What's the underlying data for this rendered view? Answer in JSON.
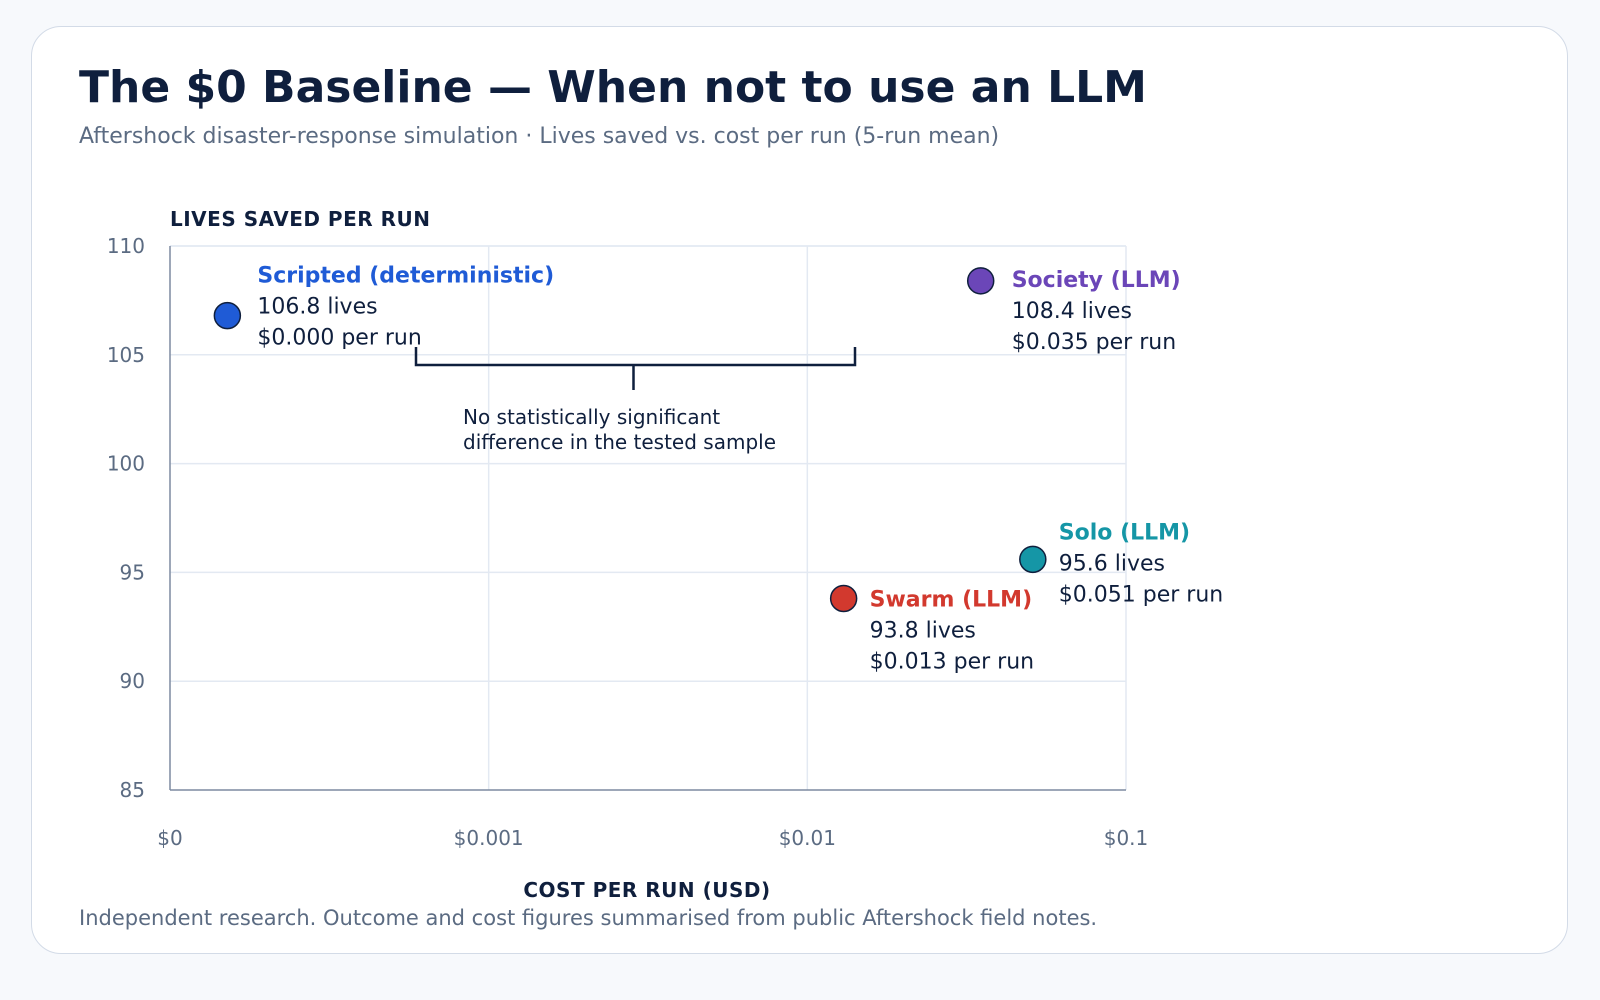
{
  "header": {
    "title": "The $0 Baseline — When not to use an LLM",
    "subtitle": "Aftershock disaster-response simulation · Lives saved vs. cost per run (5-run mean)"
  },
  "footer": {
    "note": "Independent research. Outcome and cost figures summarised from public Aftershock field notes."
  },
  "chart_data": {
    "type": "scatter",
    "xlabel": "COST PER RUN (USD)",
    "ylabel": "LIVES SAVED PER RUN",
    "x_scale": "log-with-zero",
    "x_ticks": [
      "$0",
      "$0.001",
      "$0.01",
      "$0.1"
    ],
    "y_ticks": [
      "85",
      "90",
      "95",
      "100",
      "105",
      "110"
    ],
    "ylim": [
      85,
      110
    ],
    "grid": true,
    "points": [
      {
        "name": "Scripted (deterministic)",
        "x": 0.0,
        "y": 106.8,
        "lives": "106.8 lives",
        "cost": "$0.000 per run",
        "color": "#1f5bd6"
      },
      {
        "name": "Society (LLM)",
        "x": 0.035,
        "y": 108.4,
        "lives": "108.4 lives",
        "cost": "$0.035 per run",
        "color": "#6b46b8"
      },
      {
        "name": "Solo (LLM)",
        "x": 0.051,
        "y": 95.6,
        "lives": "95.6 lives",
        "cost": "$0.051 per run",
        "color": "#1596a6"
      },
      {
        "name": "Swarm (LLM)",
        "x": 0.013,
        "y": 93.8,
        "lives": "93.8 lives",
        "cost": "$0.013 per run",
        "color": "#d2392e"
      }
    ],
    "annotation": {
      "lines": [
        "No statistically significant",
        "difference in the tested sample"
      ],
      "between": [
        "Scripted (deterministic)",
        "Society (LLM)"
      ]
    }
  }
}
